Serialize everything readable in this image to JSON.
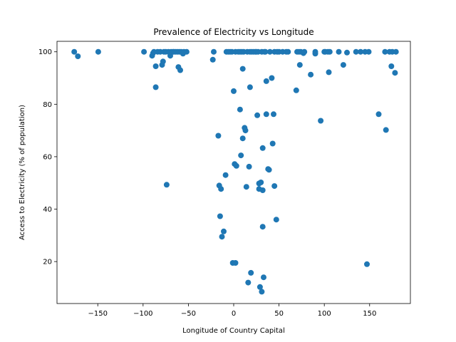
{
  "chart_data": {
    "type": "scatter",
    "title": "Prevalence of Electricity vs Longitude",
    "xlabel": "Longitude of Country Capital",
    "ylabel": "Access to Electricity (% of population)",
    "xlim": [
      -195,
      195
    ],
    "ylim": [
      4,
      104
    ],
    "xticks": [
      -150,
      -100,
      -50,
      0,
      50,
      100,
      150
    ],
    "yticks": [
      20,
      40,
      60,
      80,
      100
    ],
    "xtick_labels": [
      "−150",
      "−100",
      "−50",
      "0",
      "50",
      "100",
      "150"
    ],
    "ytick_labels": [
      "20",
      "40",
      "60",
      "80",
      "100"
    ],
    "grid": false,
    "marker_color": "#1f77b4",
    "points": [
      [
        -176,
        100
      ],
      [
        -172,
        98.3
      ],
      [
        -149.5,
        100
      ],
      [
        -99,
        100
      ],
      [
        -90,
        98.5
      ],
      [
        -89,
        99.5
      ],
      [
        -88,
        100
      ],
      [
        -86,
        94.5
      ],
      [
        -86,
        86.5
      ],
      [
        -84,
        100
      ],
      [
        -81,
        100
      ],
      [
        -79,
        95
      ],
      [
        -78,
        96.3
      ],
      [
        -77,
        100
      ],
      [
        -75,
        100
      ],
      [
        -74,
        49.3
      ],
      [
        -72,
        100
      ],
      [
        -70,
        98.5
      ],
      [
        -69,
        100
      ],
      [
        -67,
        100
      ],
      [
        -66,
        100
      ],
      [
        -64,
        100
      ],
      [
        -62,
        100
      ],
      [
        -61,
        94.2
      ],
      [
        -60,
        100
      ],
      [
        -59,
        93
      ],
      [
        -58,
        100
      ],
      [
        -56,
        99.3
      ],
      [
        -55,
        100
      ],
      [
        -52,
        100
      ],
      [
        -23,
        97
      ],
      [
        -22,
        100
      ],
      [
        -17,
        68
      ],
      [
        -16,
        49
      ],
      [
        -15,
        37.3
      ],
      [
        -14,
        47.7
      ],
      [
        -13,
        29.5
      ],
      [
        -11,
        31.5
      ],
      [
        -9,
        53
      ],
      [
        -8,
        100
      ],
      [
        -6,
        100
      ],
      [
        -4,
        100
      ],
      [
        -2,
        100
      ],
      [
        -1,
        19.5
      ],
      [
        0,
        85
      ],
      [
        1,
        57.2
      ],
      [
        2,
        19.5
      ],
      [
        2,
        100
      ],
      [
        3,
        56.5
      ],
      [
        5,
        100
      ],
      [
        7,
        100
      ],
      [
        7,
        78
      ],
      [
        8,
        60.5
      ],
      [
        9,
        100
      ],
      [
        10,
        93.5
      ],
      [
        10,
        67
      ],
      [
        11,
        100
      ],
      [
        12,
        71
      ],
      [
        13,
        70
      ],
      [
        14,
        48.5
      ],
      [
        15,
        100
      ],
      [
        16,
        12
      ],
      [
        17,
        56.2
      ],
      [
        18,
        100
      ],
      [
        18,
        86.5
      ],
      [
        19,
        15.7
      ],
      [
        20,
        100
      ],
      [
        22,
        100
      ],
      [
        24,
        100
      ],
      [
        25,
        100
      ],
      [
        26,
        75.8
      ],
      [
        27,
        100
      ],
      [
        28,
        49.8
      ],
      [
        28,
        47.7
      ],
      [
        29,
        10.3
      ],
      [
        30,
        50.2
      ],
      [
        31,
        100
      ],
      [
        31,
        8.5
      ],
      [
        32,
        63.3
      ],
      [
        32,
        47.2
      ],
      [
        32,
        33.3
      ],
      [
        33,
        14
      ],
      [
        34,
        100
      ],
      [
        35,
        100
      ],
      [
        36,
        88.8
      ],
      [
        36,
        76.2
      ],
      [
        38,
        55.3
      ],
      [
        39,
        55
      ],
      [
        40,
        100
      ],
      [
        42,
        90
      ],
      [
        43,
        65
      ],
      [
        44,
        76.2
      ],
      [
        45,
        48.8
      ],
      [
        45,
        100
      ],
      [
        47,
        36
      ],
      [
        48,
        100
      ],
      [
        50,
        100
      ],
      [
        54,
        100
      ],
      [
        58,
        100
      ],
      [
        60,
        100
      ],
      [
        69,
        85.3
      ],
      [
        70,
        100
      ],
      [
        72,
        100
      ],
      [
        73,
        95
      ],
      [
        74,
        100
      ],
      [
        77,
        99.5
      ],
      [
        78,
        100
      ],
      [
        85,
        91.3
      ],
      [
        90,
        99.3
      ],
      [
        90,
        100
      ],
      [
        96,
        73.7
      ],
      [
        100,
        100
      ],
      [
        101,
        100
      ],
      [
        104,
        100
      ],
      [
        105,
        92.2
      ],
      [
        106,
        100
      ],
      [
        116,
        100
      ],
      [
        121,
        95
      ],
      [
        125,
        99.7
      ],
      [
        135,
        100
      ],
      [
        140,
        100
      ],
      [
        145,
        100
      ],
      [
        147,
        19
      ],
      [
        149,
        100
      ],
      [
        160,
        76.2
      ],
      [
        167,
        100
      ],
      [
        168,
        70.2
      ],
      [
        172,
        100
      ],
      [
        174,
        94.5
      ],
      [
        175,
        100
      ],
      [
        178,
        92
      ],
      [
        179,
        100
      ]
    ]
  }
}
